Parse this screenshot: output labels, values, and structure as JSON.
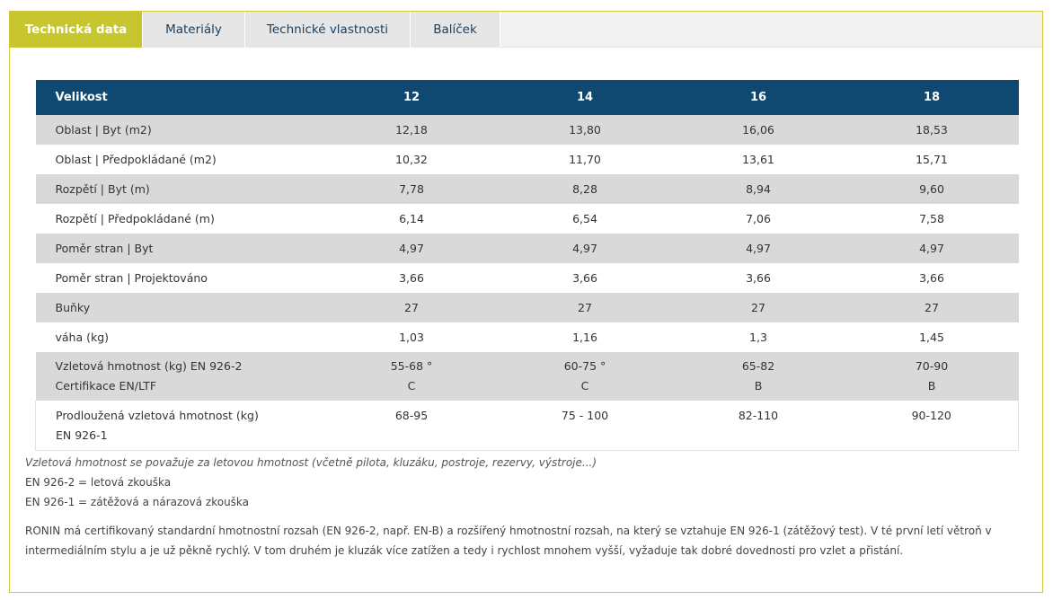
{
  "tabs": [
    {
      "label": "Technická data",
      "active": true
    },
    {
      "label": "Materiály",
      "active": false
    },
    {
      "label": "Technické vlastnosti",
      "active": false
    },
    {
      "label": "Balíček",
      "active": false
    }
  ],
  "table": {
    "headers": [
      "Velikost",
      "12",
      "14",
      "16",
      "18"
    ],
    "rows": [
      {
        "label": "Oblast | Byt (m2)",
        "values": [
          "12,18",
          "13,80",
          "16,06",
          "18,53"
        ]
      },
      {
        "label": "Oblast | Předpokládané (m2)",
        "values": [
          "10,32",
          "11,70",
          "13,61",
          "15,71"
        ]
      },
      {
        "label": "Rozpětí | Byt (m)",
        "values": [
          "7,78",
          "8,28",
          "8,94",
          "9,60"
        ]
      },
      {
        "label": "Rozpětí | Předpokládané (m)",
        "values": [
          "6,14",
          "6,54",
          "7,06",
          "7,58"
        ]
      },
      {
        "label": "Poměr stran | Byt",
        "values": [
          "4,97",
          "4,97",
          "4,97",
          "4,97"
        ]
      },
      {
        "label": "Poměr stran | Projektováno",
        "values": [
          "3,66",
          "3,66",
          "3,66",
          "3,66"
        ]
      },
      {
        "label": "Buňky",
        "values": [
          "27",
          "27",
          "27",
          "27"
        ]
      },
      {
        "label": "váha (kg)",
        "values": [
          "1,03",
          "1,16",
          "1,3",
          "1,45"
        ]
      },
      {
        "label": "Vzletová hmotnost (kg) EN 926-2",
        "label2": "Certifikace EN/LTF",
        "values": [
          "55-68 °",
          "60-75 °",
          "65-82",
          "70-90"
        ],
        "values2": [
          "C",
          "C",
          "B",
          "B"
        ]
      },
      {
        "label": "Prodloužená vzletová hmotnost (kg)",
        "label2": "EN 926-1",
        "values": [
          "68-95",
          "75 - 100",
          "82-110",
          "90-120"
        ]
      }
    ]
  },
  "notes": {
    "line1": "Vzletová hmotnost se považuje za letovou hmotnost (včetně pilota, kluzáku, postroje, rezervy, výstroje...)",
    "line2": "EN 926-2 = letová zkouška",
    "line3": "EN 926-1 = zátěžová a nárazová zkouška"
  },
  "description": "RONIN má certifikovaný standardní hmotnostní rozsah (EN 926-2, např. EN-B) a rozšířený hmotnostní rozsah, na který se vztahuje EN 926-1 (zátěžový test). V té první letí větroň v intermediálním stylu a je už pěkně rychlý. V tom druhém je kluzák více zatížen a tedy i rychlost mnohem vyšší, vyžaduje tak dobré dovednosti pro vzlet a přistání.",
  "colors": {
    "accent": "#c8c62e",
    "header": "#0f4870",
    "stripe": "#d9d9d9"
  }
}
